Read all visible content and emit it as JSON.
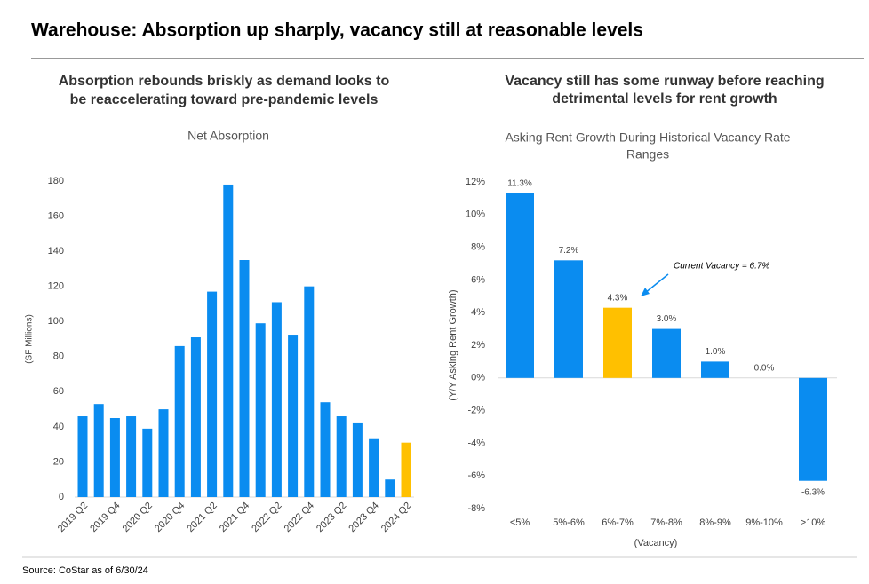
{
  "title": "Warehouse: Absorption up sharply, vacancy still at reasonable levels",
  "source": "Source: CoStar as of 6/30/24",
  "chart_data": [
    {
      "type": "bar",
      "heading": [
        "Absorption rebounds briskly as demand looks to",
        "be reaccelerating toward pre-pandemic levels"
      ],
      "title": "Net Absorption",
      "y_label": "(SF Millions)",
      "categories": [
        "2019 Q2",
        null,
        "2019 Q4",
        null,
        "2020 Q2",
        null,
        "2020 Q4",
        null,
        "2021 Q2",
        null,
        "2021 Q4",
        null,
        "2022 Q2",
        null,
        "2022 Q4",
        null,
        "2023 Q2",
        null,
        "2023 Q4",
        null,
        "2024 Q2"
      ],
      "values": [
        46,
        53,
        45,
        46,
        39,
        50,
        86,
        91,
        117,
        178,
        135,
        99,
        111,
        92,
        120,
        54,
        46,
        42,
        33,
        10,
        31
      ],
      "colors": [
        "#0a8cf0",
        "#0a8cf0",
        "#0a8cf0",
        "#0a8cf0",
        "#0a8cf0",
        "#0a8cf0",
        "#0a8cf0",
        "#0a8cf0",
        "#0a8cf0",
        "#0a8cf0",
        "#0a8cf0",
        "#0a8cf0",
        "#0a8cf0",
        "#0a8cf0",
        "#0a8cf0",
        "#0a8cf0",
        "#0a8cf0",
        "#0a8cf0",
        "#0a8cf0",
        "#0a8cf0",
        "#ffc000"
      ],
      "ylim": [
        0,
        180
      ],
      "yticks": [
        0,
        20,
        40,
        60,
        80,
        100,
        120,
        140,
        160,
        180
      ],
      "grid": false
    },
    {
      "type": "bar",
      "heading": [
        "Vacancy still has some runway before reaching",
        "detrimental levels for rent growth"
      ],
      "title": [
        "Asking Rent Growth During Historical Vacancy Rate",
        "Ranges"
      ],
      "y_label": "(Y/Y Asking Rent Growth)",
      "x_label": "(Vacancy)",
      "annotation": "Current Vacancy = 6.7%",
      "categories": [
        "<5%",
        "5%-6%",
        "6%-7%",
        "7%-8%",
        "8%-9%",
        "9%-10%",
        ">10%"
      ],
      "values": [
        11.3,
        7.2,
        4.3,
        3.0,
        1.0,
        0.0,
        -6.3
      ],
      "value_labels": [
        "11.3%",
        "7.2%",
        "4.3%",
        "3.0%",
        "1.0%",
        "0.0%",
        "-6.3%"
      ],
      "colors": [
        "#0a8cf0",
        "#0a8cf0",
        "#ffc000",
        "#0a8cf0",
        "#0a8cf0",
        "#0a8cf0",
        "#0a8cf0"
      ],
      "ylim": [
        -8,
        12
      ],
      "yticks": [
        {
          "value": -8,
          "label": "-8%"
        },
        {
          "value": -6,
          "label": "-6%"
        },
        {
          "value": -4,
          "label": "-4%"
        },
        {
          "value": -2,
          "label": "-2%"
        },
        {
          "value": 0,
          "label": "0%"
        },
        {
          "value": 2,
          "label": "2%"
        },
        {
          "value": 4,
          "label": "4%"
        },
        {
          "value": 6,
          "label": "6%"
        },
        {
          "value": 8,
          "label": "8%"
        },
        {
          "value": 10,
          "label": "10%"
        },
        {
          "value": 12,
          "label": "12%"
        }
      ],
      "grid": false
    }
  ]
}
